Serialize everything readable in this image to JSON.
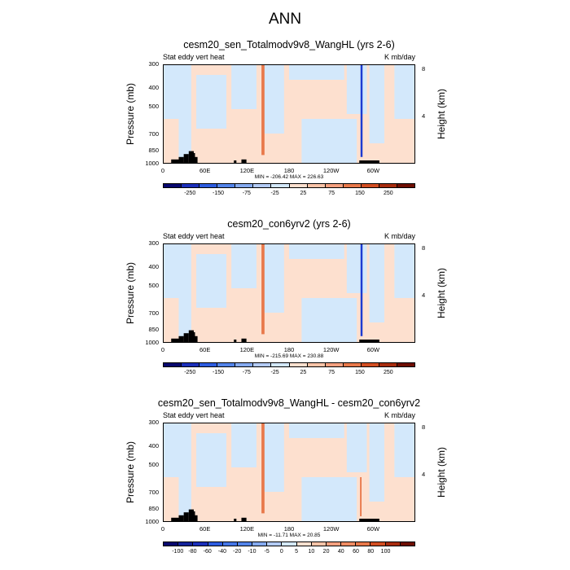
{
  "title": "ANN",
  "colors": {
    "bg_fill": "#fde0cf",
    "cool_fill": "#d3e8fb",
    "hot": "#e8784a",
    "cold": "#1d3bd1",
    "land": "#000000"
  },
  "chart_data": [
    {
      "type": "heatmap",
      "title": "cesm20_sen_Totalmodv9v8_WangHL (yrs 2-6)",
      "left_string": "Stat eddy vert heat",
      "right_string": "K mb/day",
      "ylabel": "Pressure (mb)",
      "ylabel_right": "Height (km)",
      "y_ticks": [
        "300",
        "400",
        "500",
        "700",
        "850",
        "1000"
      ],
      "y_ticks_right": [
        "8",
        "4"
      ],
      "x_ticks": [
        "0",
        "60E",
        "120E",
        "180",
        "120W",
        "60W"
      ],
      "minmax": "MIN = -206.42  MAX = 226.63",
      "levels": [
        "-250",
        "-150",
        "-75",
        "-25",
        "25",
        "75",
        "150",
        "250"
      ],
      "colors": [
        "#08086e",
        "#1b2fba",
        "#2d5ce0",
        "#5384ea",
        "#85aaf0",
        "#b3cbf6",
        "#d3e8fb",
        "#fde0cf",
        "#fbc4a8",
        "#f5a07f",
        "#e8784a",
        "#d24e22",
        "#a72c0e",
        "#6e0e02"
      ]
    },
    {
      "type": "heatmap",
      "title": "cesm20_con6yrv2 (yrs 2-6)",
      "left_string": "Stat eddy vert heat",
      "right_string": "K mb/day",
      "ylabel": "Pressure (mb)",
      "ylabel_right": "Height (km)",
      "y_ticks": [
        "300",
        "400",
        "500",
        "700",
        "850",
        "1000"
      ],
      "y_ticks_right": [
        "8",
        "4"
      ],
      "x_ticks": [
        "0",
        "60E",
        "120E",
        "180",
        "120W",
        "60W"
      ],
      "minmax": "MIN = -215.69  MAX = 230.88",
      "levels": [
        "-250",
        "-150",
        "-75",
        "-25",
        "25",
        "75",
        "150",
        "250"
      ],
      "colors": [
        "#08086e",
        "#1b2fba",
        "#2d5ce0",
        "#5384ea",
        "#85aaf0",
        "#b3cbf6",
        "#d3e8fb",
        "#fde0cf",
        "#fbc4a8",
        "#f5a07f",
        "#e8784a",
        "#d24e22",
        "#a72c0e",
        "#6e0e02"
      ]
    },
    {
      "type": "heatmap",
      "title": "cesm20_sen_Totalmodv9v8_WangHL - cesm20_con6yrv2",
      "left_string": "Stat eddy vert heat",
      "right_string": "K mb/day",
      "ylabel": "Pressure (mb)",
      "ylabel_right": "Height (km)",
      "y_ticks": [
        "300",
        "400",
        "500",
        "700",
        "850",
        "1000"
      ],
      "y_ticks_right": [
        "8",
        "4"
      ],
      "x_ticks": [
        "0",
        "60E",
        "120E",
        "180",
        "120W",
        "60W"
      ],
      "minmax": "MIN = -11.71  MAX =  20.85",
      "levels": [
        "-100",
        "-80",
        "-60",
        "-40",
        "-20",
        "-10",
        "-5",
        "0",
        "5",
        "10",
        "20",
        "40",
        "60",
        "80",
        "100"
      ],
      "colors": [
        "#08086e",
        "#13239a",
        "#1b2fba",
        "#2d5ce0",
        "#4475e6",
        "#5384ea",
        "#85aaf0",
        "#b3cbf6",
        "#d3e8fb",
        "#fde0cf",
        "#fbc4a8",
        "#f5a07f",
        "#ef8c63",
        "#e8784a",
        "#d24e22",
        "#a72c0e",
        "#6e0e02"
      ]
    }
  ]
}
